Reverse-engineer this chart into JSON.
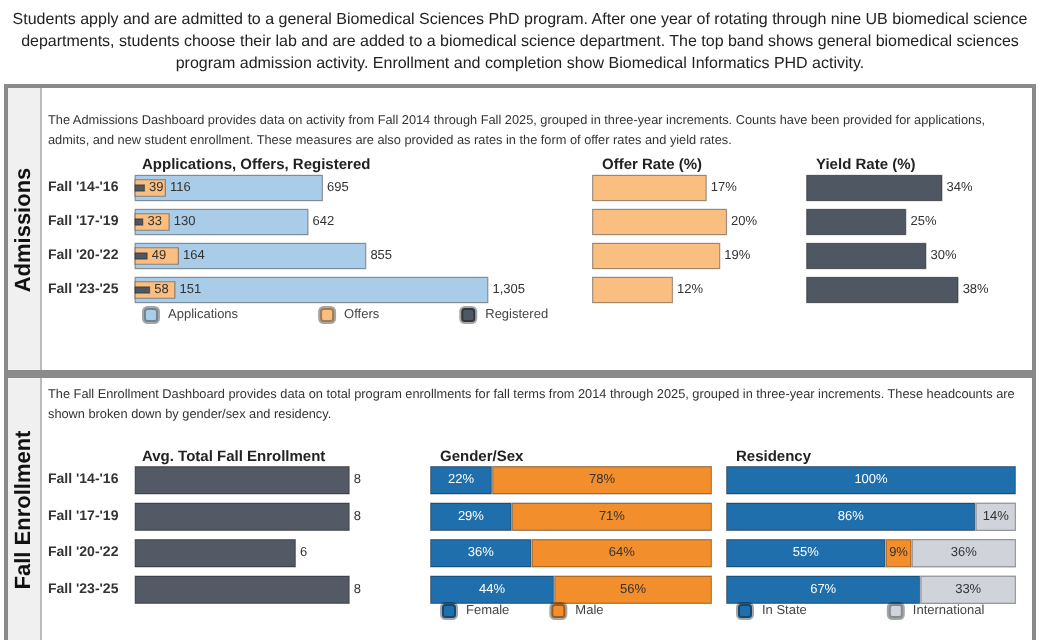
{
  "chart_data": [
    {
      "type": "other",
      "annotations": [
        "Students apply and are admitted to a general Biomedical Sciences PhD program. After one year of rotating through nine UB biomedical science departments, students choose their lab and are added to a biomedical science department.  The top band shows general biomedical sciences program admission activity. Enrollment and completion show Biomedical Informatics PHD activity."
      ]
    },
    {
      "type": "other",
      "title": "Admissions",
      "annotations": [
        "The Admissions Dashboard provides data on activity from Fall 2014 through Fall 2025, grouped in three-year increments. Counts have been provided for applications, admits, and new student enrollment. These measures are also provided as rates in the form of offer rates and yield rates."
      ]
    },
    {
      "type": "bar",
      "title": "Applications, Offers, Registered",
      "orientation": "horizontal",
      "categories": [
        "Fall '14-'16",
        "Fall '17-'19",
        "Fall '20-'22",
        "Fall '23-'25"
      ],
      "series": [
        {
          "name": "Applications",
          "color": "#a9cce8",
          "values": [
            695,
            642,
            855,
            1305
          ],
          "value_labels": [
            "695",
            "642",
            "855",
            "1,305"
          ]
        },
        {
          "name": "Offers",
          "color": "#f9be80",
          "values": [
            116,
            130,
            164,
            151
          ]
        },
        {
          "name": "Registered",
          "color": "#4f5762",
          "values": [
            39,
            33,
            49,
            58
          ]
        }
      ],
      "data_labels": true,
      "legend": "bottom"
    },
    {
      "type": "bar",
      "title": "Offer Rate (%)",
      "orientation": "horizontal",
      "categories": [
        null,
        null,
        null,
        null
      ],
      "color": "#f9be80",
      "values": [
        17,
        20,
        19,
        12
      ],
      "value_labels": [
        "17%",
        "20%",
        "19%",
        "12%"
      ]
    },
    {
      "type": "bar",
      "title": "Yield Rate (%)",
      "orientation": "horizontal",
      "categories": [
        null,
        null,
        null,
        null
      ],
      "color": "#4f5762",
      "values": [
        34,
        25,
        30,
        38
      ],
      "value_labels": [
        "34%",
        "25%",
        "30%",
        "38%"
      ]
    },
    {
      "type": "other",
      "title": "Fall Enrollment",
      "annotations": [
        "The Fall Enrollment Dashboard provides data on total program enrollments for fall terms from 2014 through 2025, grouped in three-year increments. These headcounts are shown broken down by gender/sex and residency."
      ]
    },
    {
      "type": "bar",
      "title": "Avg. Total Fall Enrollment",
      "orientation": "horizontal",
      "categories": [
        "Fall '14-'16",
        "Fall '17-'19",
        "Fall '20-'22",
        "Fall '23-'25"
      ],
      "color": "#535a65",
      "values": [
        8,
        8,
        6,
        8
      ],
      "data_labels": true
    },
    {
      "type": "bar",
      "title": "Gender/Sex",
      "orientation": "horizontal",
      "stacked": true,
      "categories": [
        null,
        null,
        null,
        null
      ],
      "series": [
        {
          "name": "Female",
          "color": "#1f6fad",
          "values": [
            22,
            29,
            36,
            44
          ],
          "value_labels": [
            "22%",
            "29%",
            "36%",
            "44%"
          ]
        },
        {
          "name": "Male",
          "color": "#f28e2b",
          "values": [
            78,
            71,
            64,
            56
          ],
          "value_labels": [
            "78%",
            "71%",
            "64%",
            "56%"
          ]
        }
      ],
      "legend": "bottom"
    },
    {
      "type": "bar",
      "title": "Residency",
      "orientation": "horizontal",
      "stacked": true,
      "categories": [
        null,
        null,
        null,
        null
      ],
      "series": [
        {
          "name": "In State",
          "color": "#1f6fad",
          "values": [
            100,
            86,
            55,
            67
          ],
          "value_labels": [
            "100%",
            "86%",
            "55%",
            "67%"
          ]
        },
        {
          "color": "#f28e2b",
          "values": [
            null,
            null,
            9,
            null
          ],
          "value_labels": [
            null,
            null,
            "9%",
            null
          ]
        },
        {
          "name": "International",
          "color": "#d0d4da",
          "values": [
            null,
            14,
            36,
            33
          ],
          "value_labels": [
            null,
            "14%",
            "36%",
            "33%"
          ]
        }
      ],
      "legend": "bottom"
    }
  ]
}
